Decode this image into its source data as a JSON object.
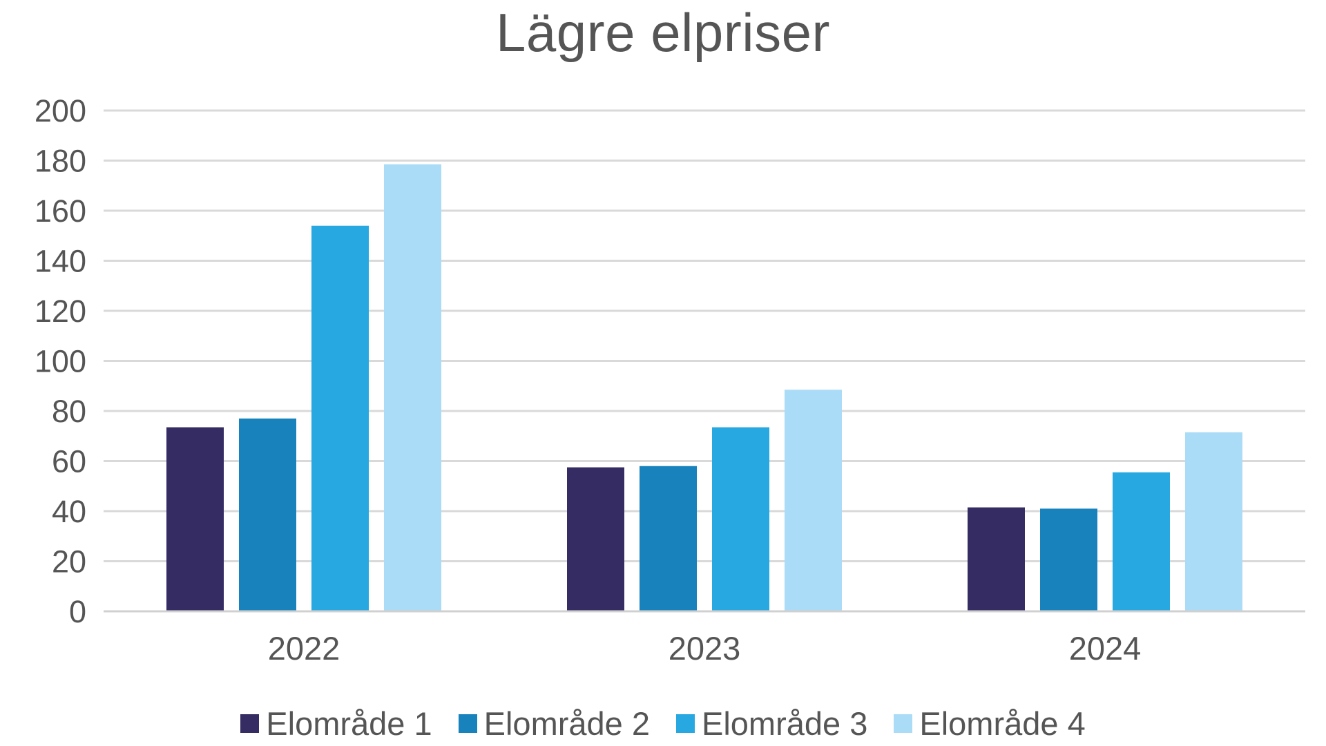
{
  "chart_data": {
    "type": "bar",
    "title": "Lägre elpriser",
    "categories": [
      "2022",
      "2023",
      "2024"
    ],
    "series": [
      {
        "name": "Elområde 1",
        "color": "#342c63",
        "values": [
          73.5,
          57.5,
          41.5
        ]
      },
      {
        "name": "Elområde 2",
        "color": "#1882bc",
        "values": [
          77,
          58,
          41
        ]
      },
      {
        "name": "Elområde 3",
        "color": "#27a8e0",
        "values": [
          154,
          73.5,
          55.5
        ]
      },
      {
        "name": "Elområde 4",
        "color": "#abdcf7",
        "values": [
          178.5,
          88.5,
          71.5
        ]
      }
    ],
    "ylim": [
      0,
      200
    ],
    "yticks": [
      "0",
      "20",
      "40",
      "60",
      "80",
      "100",
      "120",
      "140",
      "160",
      "180",
      "200"
    ],
    "grid": true,
    "legend_position": "bottom"
  }
}
